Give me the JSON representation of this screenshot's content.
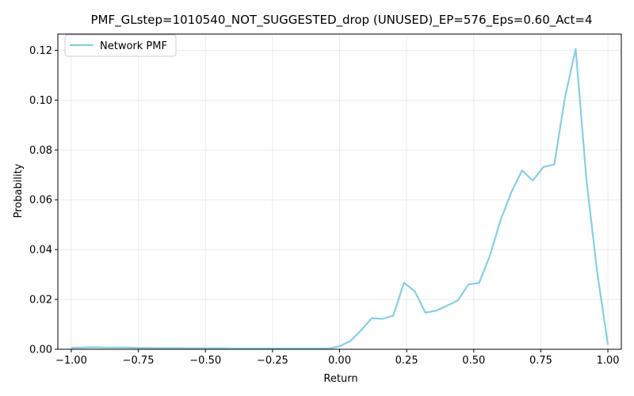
{
  "chart_data": {
    "type": "line",
    "title": "PMF_GLstep=1010540_NOT_SUGGESTED_drop (UNUSED)_EP=576_Eps=0.60_Act=4",
    "xlabel": "Return",
    "ylabel": "Probability",
    "xlim": [
      -1.05,
      1.05
    ],
    "ylim": [
      0.0,
      0.1265
    ],
    "xticks": [
      -1.0,
      -0.75,
      -0.5,
      -0.25,
      0.0,
      0.25,
      0.5,
      0.75,
      1.0
    ],
    "xtick_labels": [
      "−1.00",
      "−0.75",
      "−0.50",
      "−0.25",
      "0.00",
      "0.25",
      "0.50",
      "0.75",
      "1.00"
    ],
    "yticks": [
      0.0,
      0.02,
      0.04,
      0.06,
      0.08,
      0.1,
      0.12
    ],
    "ytick_labels": [
      "0.00",
      "0.02",
      "0.04",
      "0.06",
      "0.08",
      "0.10",
      "0.12"
    ],
    "grid": true,
    "legend_position": "top-left",
    "series": [
      {
        "name": "Network PMF",
        "color": "#87cee6",
        "x": [
          -1.0,
          -0.96,
          -0.92,
          -0.88,
          -0.84,
          -0.8,
          -0.76,
          -0.72,
          -0.68,
          -0.64,
          -0.6,
          -0.56,
          -0.52,
          -0.48,
          -0.44,
          -0.4,
          -0.36,
          -0.32,
          -0.28,
          -0.24,
          -0.2,
          -0.16,
          -0.12,
          -0.08,
          -0.04,
          0.0,
          0.04,
          0.08,
          0.12,
          0.16,
          0.2,
          0.24,
          0.28,
          0.32,
          0.36,
          0.4,
          0.44,
          0.48,
          0.52,
          0.56,
          0.6,
          0.64,
          0.68,
          0.72,
          0.76,
          0.8,
          0.84,
          0.88,
          0.92,
          0.96,
          1.0
        ],
        "y": [
          0.0006,
          0.0007,
          0.0008,
          0.0007,
          0.0007,
          0.0007,
          0.0006,
          0.0005,
          0.0005,
          0.0005,
          0.0005,
          0.0004,
          0.0004,
          0.0004,
          0.0004,
          0.0003,
          0.0003,
          0.0003,
          0.0003,
          0.0003,
          0.0003,
          0.0003,
          0.0003,
          0.0003,
          0.0003,
          0.0012,
          0.0033,
          0.0076,
          0.0125,
          0.0122,
          0.0135,
          0.0267,
          0.0233,
          0.0147,
          0.0155,
          0.0175,
          0.0195,
          0.026,
          0.0266,
          0.0375,
          0.0518,
          0.063,
          0.0718,
          0.0677,
          0.0732,
          0.0741,
          0.101,
          0.1206,
          0.068,
          0.031,
          0.0018
        ]
      }
    ]
  }
}
